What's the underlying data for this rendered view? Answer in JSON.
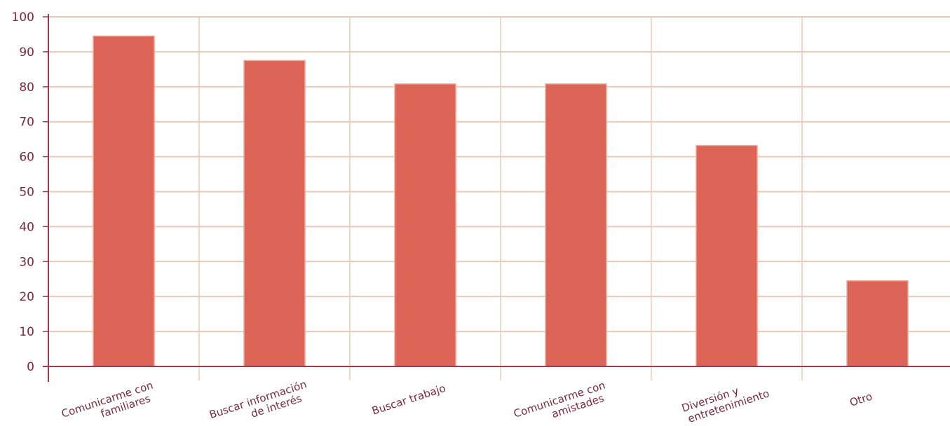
{
  "chart_data": {
    "type": "bar",
    "categories": [
      [
        "Comunicarme con",
        "familiares"
      ],
      [
        "Buscar información",
        "de interés"
      ],
      [
        "Buscar trabajo"
      ],
      [
        "Comunicarme con",
        "amistades"
      ],
      [
        "Diversión y",
        "entretenimiento"
      ],
      [
        "Otro"
      ]
    ],
    "values": [
      94.5,
      87.5,
      80.8,
      80.8,
      63.2,
      24.5
    ],
    "yticks": [
      "0",
      "10",
      "20",
      "30",
      "40",
      "50",
      "60",
      "70",
      "80",
      "90",
      "100"
    ],
    "ylim": [
      0,
      100
    ],
    "grid": true,
    "colors": {
      "bar": "#dc6456",
      "bar_edge": "#f0a898",
      "grid_h": "#ecc9b6",
      "grid_v": "#eed8cc",
      "axis": "#a8354a",
      "text": "#7a2a3c"
    }
  }
}
